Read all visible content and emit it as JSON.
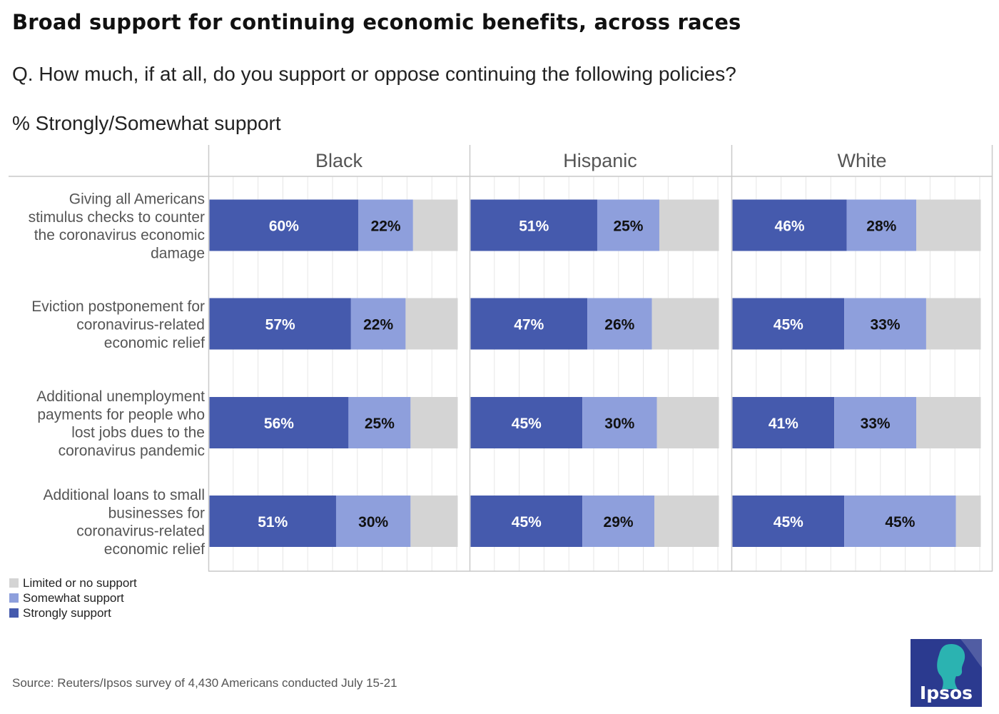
{
  "title": "Broad support for continuing economic benefits, across races",
  "subtitle": "Q. How much, if at all, do you support or oppose continuing the following policies?",
  "measure": "% Strongly/Somewhat support",
  "colors": {
    "strongly": "#455aad",
    "somewhat": "#8e9fdc",
    "limited": "#d4d4d4",
    "grid": "#e6e6e6",
    "border": "#c9c9c9",
    "logo_bg": "#2b3a8f",
    "logo_accent": "#2bb3b1"
  },
  "legend": [
    {
      "label": "Limited or no support",
      "color": "#d4d4d4"
    },
    {
      "label": "Somewhat support",
      "color": "#8e9fdc"
    },
    {
      "label": "Strongly support",
      "color": "#455aad"
    }
  ],
  "source": "Source: Reuters/Ipsos survey of 4,430 Americans conducted July 15-21",
  "logo_text": "Ipsos",
  "chart_data": {
    "type": "bar",
    "orientation": "horizontal-stacked",
    "panels": [
      "Black",
      "Hispanic",
      "White"
    ],
    "categories": [
      [
        "Giving all Americans",
        "stimulus checks to counter",
        "the coronavirus economic",
        "damage"
      ],
      [
        "Eviction postponement for",
        "coronavirus-related",
        "economic relief"
      ],
      [
        "Additional unemployment",
        "payments for people who",
        "lost jobs dues to the",
        "coronavirus pandemic"
      ],
      [
        "Additional loans to small",
        "businesses for",
        "coronavirus-related",
        "economic relief"
      ]
    ],
    "series": [
      {
        "name": "Strongly support",
        "values": [
          [
            60,
            51,
            46
          ],
          [
            57,
            47,
            45
          ],
          [
            56,
            45,
            41
          ],
          [
            51,
            45,
            45
          ]
        ]
      },
      {
        "name": "Somewhat support",
        "values": [
          [
            22,
            25,
            28
          ],
          [
            22,
            26,
            33
          ],
          [
            25,
            30,
            33
          ],
          [
            30,
            29,
            45
          ]
        ]
      },
      {
        "name": "Limited or no support",
        "values": [
          [
            18,
            24,
            26
          ],
          [
            21,
            27,
            22
          ],
          [
            19,
            25,
            26
          ],
          [
            19,
            26,
            10
          ]
        ]
      }
    ],
    "xlim": [
      0,
      100
    ],
    "value_suffix": "%"
  }
}
